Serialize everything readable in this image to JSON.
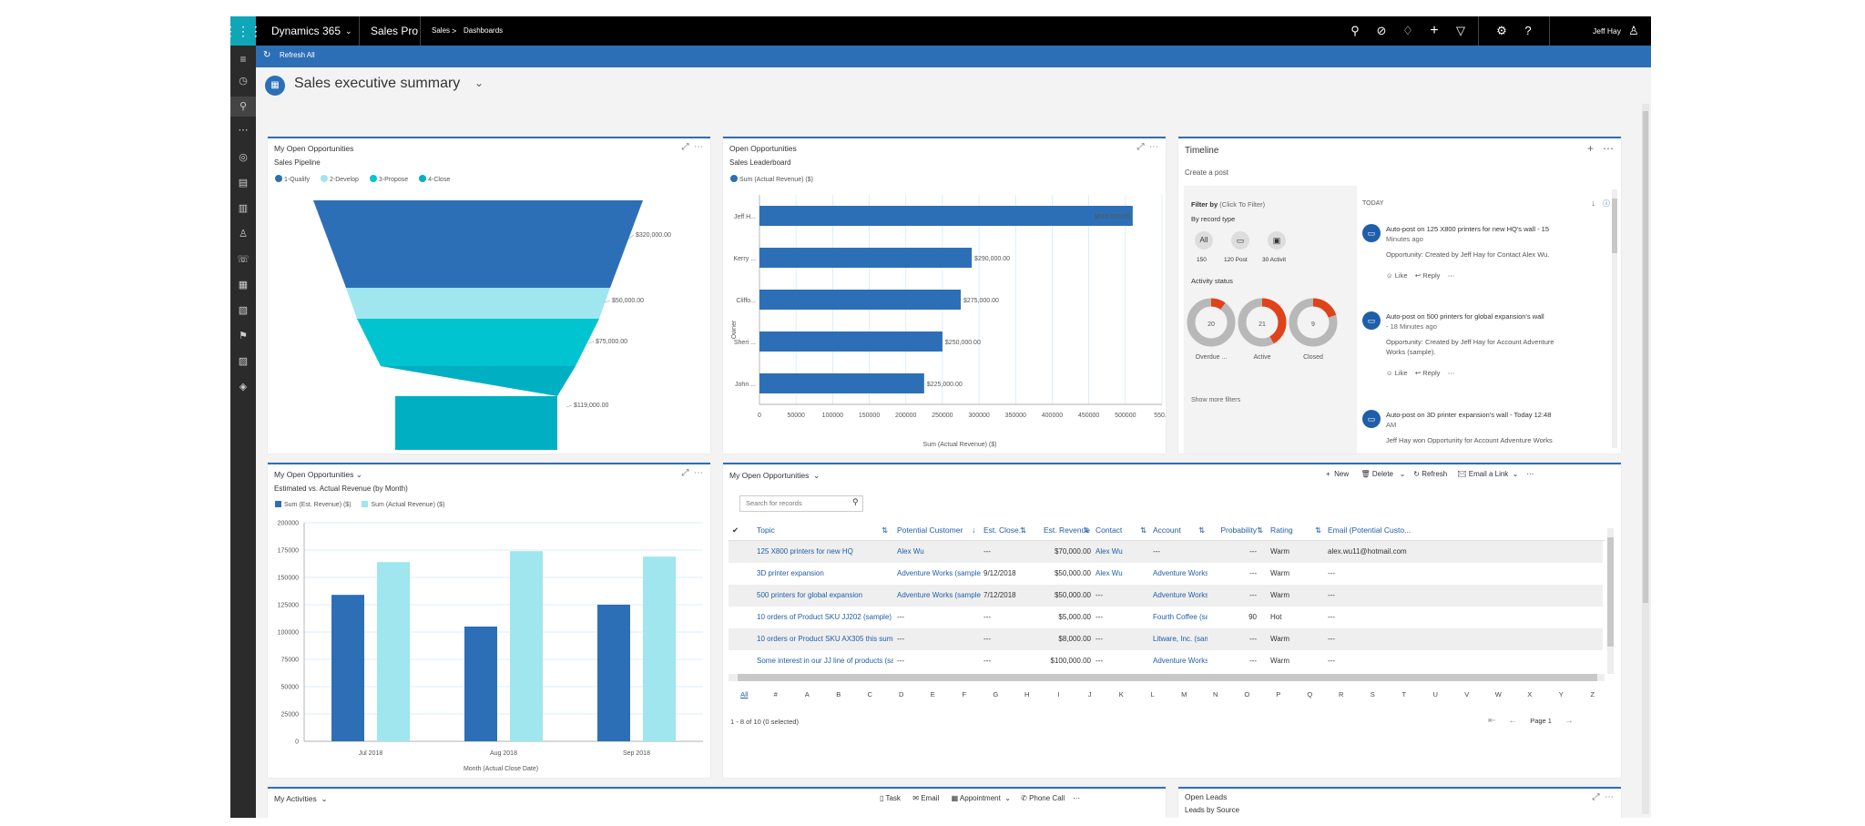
{
  "topbar": {
    "app_name": "Dynamics 365",
    "module": "Sales Pro",
    "breadcrumb_1": "Sales",
    "breadcrumb_sep": ">",
    "breadcrumb_2": "Dashboards",
    "user": "Jeff Hay"
  },
  "cmdbar": {
    "refresh_all": "Refresh All"
  },
  "page": {
    "title": "Sales executive summary"
  },
  "pipeline": {
    "header": "My Open Opportunities",
    "subtitle": "Sales Pipeline",
    "legend": [
      "1-Qualify",
      "2-Develop",
      "3-Propose",
      "4-Close"
    ],
    "colors": [
      "#2d6fb6",
      "#9fe6ee",
      "#00c4cf",
      "#00b0c2"
    ],
    "labels": [
      "$320,000.00",
      "$50,000.00",
      "$75,000.00",
      "$119,000.00"
    ]
  },
  "leaderboard": {
    "header": "Open Opportunities",
    "subtitle": "Sales Leaderboard",
    "legend": "Sum (Actual Revenue) ($)",
    "ylabel": "Owner",
    "xlabel": "Sum (Actual Revenue) ($)"
  },
  "estimated": {
    "header": "My Open Opportunities",
    "subtitle": "Estimated vs. Actual Revenue (by Month)",
    "legend": [
      "Sum (Est. Revenue) ($)",
      "Sum (Actual Revenue) ($)"
    ],
    "xlabel": "Month (Actual Close Date)"
  },
  "chart_data": [
    {
      "type": "bar",
      "orientation": "horizontal",
      "categories": [
        "Jeff H...",
        "Kerry ...",
        "Cliffo...",
        "Sheri ...",
        "John ..."
      ],
      "values": [
        510000,
        290000,
        275000,
        250000,
        225000
      ],
      "data_labels": [
        "$510,000.00",
        "$290,000.00",
        "$275,000.00",
        "$250,000.00",
        "$225,000.00"
      ],
      "series": [
        {
          "name": "Sum (Actual Revenue) ($)",
          "values": [
            510000,
            290000,
            275000,
            250000,
            225000
          ]
        }
      ],
      "xticks": [
        "0",
        "50000",
        "100000",
        "150000",
        "200000",
        "250000",
        "300000",
        "350000",
        "400000",
        "450000",
        "500000",
        "550..."
      ],
      "xlim": [
        0,
        550000
      ],
      "xlabel": "Sum (Actual Revenue) ($)",
      "ylabel": "Owner",
      "color": "#2d6fb6"
    },
    {
      "type": "bar",
      "categories": [
        "Jul 2018",
        "Aug 2018",
        "Sep 2018"
      ],
      "series": [
        {
          "name": "Sum (Est. Revenue) ($)",
          "values": [
            134000,
            105000,
            125000
          ],
          "color": "#2d6fb6"
        },
        {
          "name": "Sum (Actual Revenue) ($)",
          "values": [
            164000,
            174000,
            169000
          ],
          "color": "#9fe6ee"
        }
      ],
      "yticks": [
        "0",
        "25000",
        "50000",
        "75000",
        "100000",
        "125000",
        "150000",
        "175000",
        "200000"
      ],
      "ylim": [
        0,
        200000
      ],
      "xlabel": "Month (Actual Close Date)"
    }
  ],
  "timeline": {
    "header": "Timeline",
    "create_post": "Create a post",
    "filter_by": "Filter by",
    "click_to_filter": "(Click To Filter)",
    "by_record_type": "By record type",
    "record_types": [
      {
        "label": "All",
        "count": "150"
      },
      {
        "label": "",
        "count": "120 Post"
      },
      {
        "label": "",
        "count": "30 Activit"
      }
    ],
    "activity_status": "Activity status",
    "donuts": [
      {
        "value": "20",
        "label": "Overdue ...",
        "frac": 0.1
      },
      {
        "value": "21",
        "label": "Active",
        "frac": 0.42
      },
      {
        "value": "9",
        "label": "Closed",
        "frac": 0.2
      }
    ],
    "show_more": "Show more filters",
    "today": "TODAY",
    "posts": [
      {
        "l1": "Auto-post on 125 X800 printers for new HQ's  wall - 15",
        "l2": "Minutes ago",
        "l3": "Opportunity: Created by Jeff Hay for Contact Alex Wu."
      },
      {
        "l1": "Auto-post on 500 printers for global expansion's  wall",
        "l2": "- 18 Minutes ago",
        "l3": "Opportunity: Created by Jeff Hay for Account Adventure",
        "l4": "Works (sample)."
      },
      {
        "l1": "Auto-post on 3D printer expansion's  wall - Today 12:48",
        "l2": "AM",
        "l3": "Jeff Hay won Opportunity for Account Adventure Works"
      }
    ],
    "like": "Like",
    "reply": "Reply"
  },
  "grid": {
    "header": "My Open Opportunities",
    "actions": [
      "New",
      "Delete",
      "Refresh",
      "Email a Link"
    ],
    "search_placeholder": "Search for records",
    "columns": [
      "Topic",
      "Potential Customer",
      "Est. Close...",
      "Est. Revenue",
      "Contact",
      "Account",
      "Probability",
      "Rating",
      "Email (Potential Custo..."
    ],
    "rows": [
      [
        "125 X800 printers for new HQ",
        "Alex Wu",
        "---",
        "$70,000.00",
        "Alex Wu",
        "---",
        "---",
        "Warm",
        "alex.wu11@hotmail.com"
      ],
      [
        "3D printer expansion",
        "Adventure Works (sample)",
        "9/12/2018",
        "$50,000.00",
        "Alex Wu",
        "Adventure Works (sa",
        "---",
        "Warm",
        "---"
      ],
      [
        "500 printers for global expansion",
        "Adventure Works (sample)",
        "7/12/2018",
        "$50,000.00",
        "---",
        "Adventure Works (sa",
        "---",
        "Warm",
        "---"
      ],
      [
        "10 orders of Product SKU JJ202 (sample)",
        "---",
        "---",
        "$5,000.00",
        "---",
        "Fourth Coffee (sampl",
        "90",
        "Hot",
        "---"
      ],
      [
        "10 orders or Product SKU AX305 this summer (sampl",
        "---",
        "---",
        "$8,000.00",
        "---",
        "Litware, Inc. (sample)",
        "---",
        "Warm",
        "---"
      ],
      [
        "Some interest in our JJ line of products (sample)",
        "---",
        "---",
        "$100,000.00",
        "---",
        "Adventure Works (sa",
        "---",
        "Warm",
        "---"
      ]
    ],
    "alphabet": [
      "All",
      "#",
      "A",
      "B",
      "C",
      "D",
      "E",
      "F",
      "G",
      "H",
      "I",
      "J",
      "K",
      "L",
      "M",
      "N",
      "O",
      "P",
      "Q",
      "R",
      "S",
      "T",
      "U",
      "V",
      "W",
      "X",
      "Y",
      "Z"
    ],
    "status": "1 - 8 of 10 (0 selected)",
    "page": "Page 1"
  },
  "activities": {
    "header": "My Activities",
    "actions": [
      "Task",
      "Email",
      "Appointment",
      "Phone Call"
    ]
  },
  "leads": {
    "header": "Open Leads",
    "subtitle": "Leads by Source"
  }
}
